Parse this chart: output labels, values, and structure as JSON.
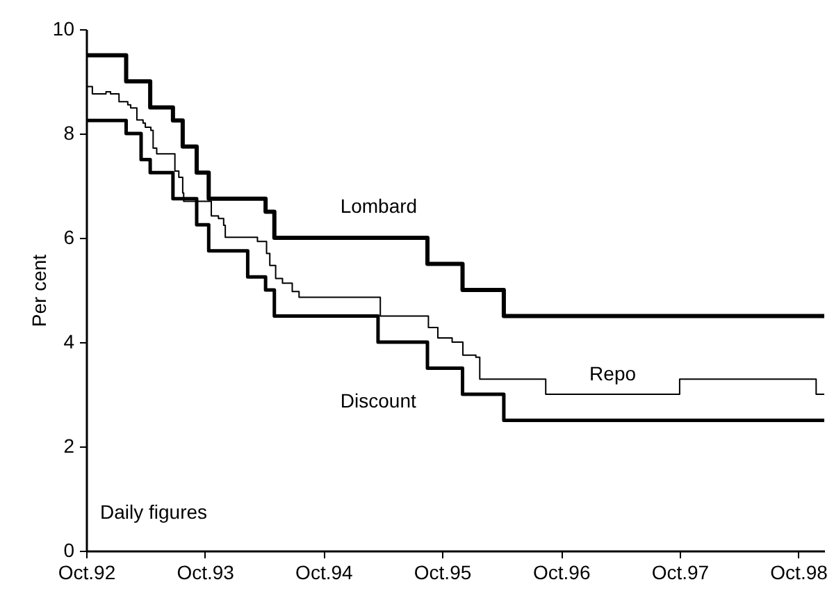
{
  "chart_data": {
    "type": "step",
    "ylabel": "Per cent",
    "annotations": [
      "Daily figures"
    ],
    "xlim": [
      "1992-10-01",
      "1998-12-20"
    ],
    "xticks": [
      {
        "value": "1992-10-01",
        "label": "Oct.92"
      },
      {
        "value": "1993-10-01",
        "label": "Oct.93"
      },
      {
        "value": "1994-10-01",
        "label": "Oct.94"
      },
      {
        "value": "1995-10-01",
        "label": "Oct.95"
      },
      {
        "value": "1996-10-01",
        "label": "Oct.96"
      },
      {
        "value": "1997-10-01",
        "label": "Oct.97"
      },
      {
        "value": "1998-10-01",
        "label": "Oct.98"
      }
    ],
    "ylim": [
      0,
      10
    ],
    "yticks": [
      0,
      2,
      4,
      6,
      8,
      10
    ],
    "grid": false,
    "line_style": "solid",
    "marker": "none",
    "series": [
      {
        "name": "Lombard",
        "color": "#000000",
        "x": [
          "1992-10-01",
          "1993-02-01",
          "1993-04-16",
          "1993-06-25",
          "1993-07-25",
          "1993-09-06",
          "1993-10-13",
          "1994-04-06",
          "1994-05-03",
          "1995-08-17",
          "1995-12-03",
          "1996-04-08",
          "1998-12-20"
        ],
        "values": [
          9.5,
          9.0,
          8.5,
          8.25,
          7.75,
          7.25,
          6.75,
          6.5,
          6.0,
          5.5,
          5.0,
          4.5,
          4.5
        ]
      },
      {
        "name": "Repo",
        "color": "#000000",
        "x": [
          "1992-10-01",
          "1992-10-20",
          "1992-12-01",
          "1992-12-15",
          "1993-01-10",
          "1993-02-06",
          "1993-02-15",
          "1993-03-06",
          "1993-03-25",
          "1993-04-01",
          "1993-04-18",
          "1993-04-25",
          "1993-05-06",
          "1993-07-01",
          "1993-07-13",
          "1993-07-25",
          "1993-07-28",
          "1993-10-21",
          "1993-11-12",
          "1993-11-28",
          "1993-12-03",
          "1994-03-12",
          "1994-04-09",
          "1994-04-19",
          "1994-05-07",
          "1994-05-28",
          "1994-06-27",
          "1994-07-18",
          "1995-03-25",
          "1995-08-20",
          "1995-09-18",
          "1995-11-01",
          "1995-12-04",
          "1996-01-13",
          "1996-01-25",
          "1996-08-15",
          "1997-10-01",
          "1998-11-25",
          "1998-12-20"
        ],
        "values": [
          8.9,
          8.76,
          8.8,
          8.76,
          8.61,
          8.55,
          8.49,
          8.26,
          8.2,
          8.12,
          8.06,
          7.72,
          7.61,
          7.28,
          7.16,
          6.86,
          6.7,
          6.42,
          6.37,
          6.24,
          6.01,
          5.93,
          5.7,
          5.47,
          5.22,
          5.13,
          4.97,
          4.86,
          4.5,
          4.28,
          4.08,
          4.0,
          3.75,
          3.71,
          3.29,
          3.0,
          3.29,
          3.0,
          3.0
        ]
      },
      {
        "name": "Discount",
        "color": "#000000",
        "x": [
          "1992-10-01",
          "1993-02-01",
          "1993-03-19",
          "1993-04-16",
          "1993-06-25",
          "1993-09-06",
          "1993-10-13",
          "1994-02-10",
          "1994-04-06",
          "1994-05-03",
          "1995-03-18",
          "1995-08-17",
          "1995-12-03",
          "1996-04-08",
          "1998-12-20"
        ],
        "values": [
          8.25,
          8.0,
          7.5,
          7.25,
          6.75,
          6.25,
          5.75,
          5.25,
          5.0,
          4.5,
          4.0,
          3.5,
          3.0,
          2.5,
          2.5
        ]
      }
    ]
  }
}
